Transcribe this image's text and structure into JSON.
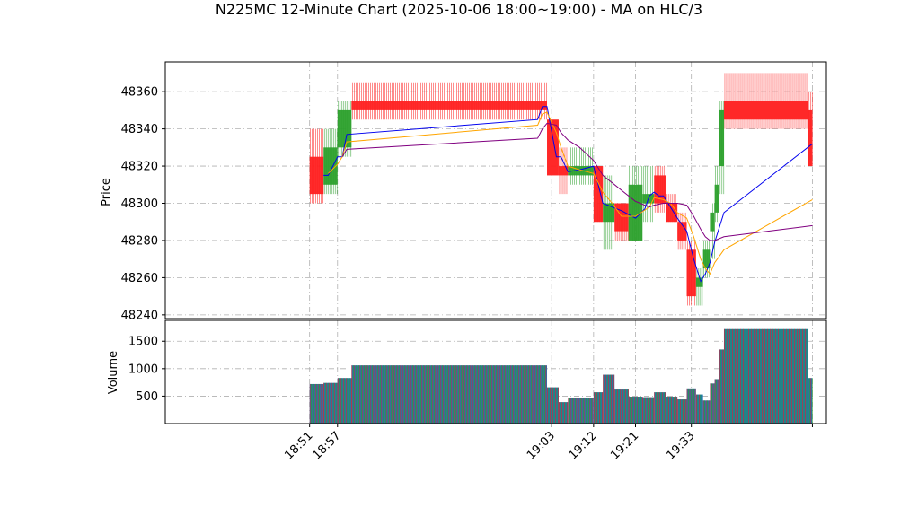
{
  "chart_data": {
    "type": "ohlc-candlestick-with-volume",
    "title": "N225MC 12-Minute Chart (2025-10-06 18:00~19:00) - MA on HLC/3",
    "price_panel": {
      "ylabel": "Price",
      "ylim": [
        48238,
        48376
      ],
      "yticks": [
        48240,
        48260,
        48280,
        48300,
        48320,
        48340,
        48360
      ],
      "grid": true
    },
    "volume_panel": {
      "ylabel": "Volume",
      "ylim": [
        0,
        1880
      ],
      "yticks": [
        500,
        1000,
        1500
      ],
      "grid": true
    },
    "xlim": [
      18.2,
      19.62
    ],
    "x_tick_labels": [
      {
        "x": 18.51,
        "label": "18:51"
      },
      {
        "x": 18.57,
        "label": "18:57"
      },
      {
        "x": 19.03,
        "label": "19:03"
      },
      {
        "x": 19.12,
        "label": "19:12"
      },
      {
        "x": 19.21,
        "label": "19:21"
      },
      {
        "x": 19.33,
        "label": "19:33"
      },
      {
        "x": 19.59,
        "label": ""
      }
    ],
    "candles": [
      {
        "x0": 18.51,
        "x1": 18.54,
        "open": 48325,
        "high": 48340,
        "low": 48300,
        "close": 48305,
        "volume": 720
      },
      {
        "x0": 18.54,
        "x1": 18.57,
        "open": 48310,
        "high": 48340,
        "low": 48305,
        "close": 48330,
        "volume": 740
      },
      {
        "x0": 18.57,
        "x1": 18.6,
        "open": 48330,
        "high": 48355,
        "low": 48325,
        "close": 48350,
        "volume": 830
      },
      {
        "x0": 18.6,
        "x1": 19.02,
        "open": 48355,
        "high": 48365,
        "low": 48345,
        "close": 48350,
        "volume": 1060
      },
      {
        "x0": 19.02,
        "x1": 19.045,
        "open": 48345,
        "high": 48345,
        "low": 48315,
        "close": 48315,
        "volume": 660
      },
      {
        "x0": 19.045,
        "x1": 19.065,
        "open": 48320,
        "high": 48330,
        "low": 48305,
        "close": 48315,
        "volume": 390
      },
      {
        "x0": 19.065,
        "x1": 19.12,
        "open": 48315,
        "high": 48330,
        "low": 48310,
        "close": 48320,
        "volume": 460
      },
      {
        "x0": 19.12,
        "x1": 19.14,
        "open": 48320,
        "high": 48320,
        "low": 48290,
        "close": 48290,
        "volume": 570
      },
      {
        "x0": 19.14,
        "x1": 19.165,
        "open": 48290,
        "high": 48315,
        "low": 48275,
        "close": 48300,
        "volume": 890
      },
      {
        "x0": 19.165,
        "x1": 19.195,
        "open": 48300,
        "high": 48300,
        "low": 48280,
        "close": 48285,
        "volume": 620
      },
      {
        "x0": 19.195,
        "x1": 19.225,
        "open": 48280,
        "high": 48320,
        "low": 48280,
        "close": 48310,
        "volume": 490
      },
      {
        "x0": 19.225,
        "x1": 19.25,
        "open": 48300,
        "high": 48320,
        "low": 48290,
        "close": 48305,
        "volume": 480
      },
      {
        "x0": 19.25,
        "x1": 19.275,
        "open": 48315,
        "high": 48320,
        "low": 48295,
        "close": 48300,
        "volume": 570
      },
      {
        "x0": 19.275,
        "x1": 19.3,
        "open": 48300,
        "high": 48305,
        "low": 48290,
        "close": 48290,
        "volume": 490
      },
      {
        "x0": 19.3,
        "x1": 19.32,
        "open": 48290,
        "high": 48295,
        "low": 48275,
        "close": 48280,
        "volume": 440
      },
      {
        "x0": 19.32,
        "x1": 19.34,
        "open": 48275,
        "high": 48280,
        "low": 48245,
        "close": 48250,
        "volume": 640
      },
      {
        "x0": 19.34,
        "x1": 19.355,
        "open": 48255,
        "high": 48265,
        "low": 48245,
        "close": 48260,
        "volume": 530
      },
      {
        "x0": 19.355,
        "x1": 19.37,
        "open": 48265,
        "high": 48280,
        "low": 48260,
        "close": 48275,
        "volume": 420
      },
      {
        "x0": 19.37,
        "x1": 19.38,
        "open": 48285,
        "high": 48300,
        "low": 48270,
        "close": 48295,
        "volume": 730
      },
      {
        "x0": 19.38,
        "x1": 19.39,
        "open": 48295,
        "high": 48320,
        "low": 48290,
        "close": 48310,
        "volume": 810
      },
      {
        "x0": 19.39,
        "x1": 19.4,
        "open": 48320,
        "high": 48355,
        "low": 48305,
        "close": 48350,
        "volume": 1350
      },
      {
        "x0": 19.4,
        "x1": 19.58,
        "open": 48355,
        "high": 48370,
        "low": 48340,
        "close": 48345,
        "volume": 1720
      },
      {
        "x0": 19.58,
        "x1": 19.59,
        "open": 48350,
        "high": 48360,
        "low": 48320,
        "close": 48320,
        "volume": 830
      }
    ],
    "ma_series": [
      {
        "color": "#0000ee",
        "points": [
          [
            18.54,
            48315
          ],
          [
            18.55,
            48315
          ],
          [
            18.57,
            48325
          ],
          [
            18.58,
            48325
          ],
          [
            18.59,
            48337
          ],
          [
            19.0,
            48345
          ],
          [
            19.01,
            48352
          ],
          [
            19.02,
            48352
          ],
          [
            19.04,
            48325
          ],
          [
            19.05,
            48325
          ],
          [
            19.065,
            48317
          ],
          [
            19.09,
            48318
          ],
          [
            19.12,
            48320
          ],
          [
            19.14,
            48300
          ],
          [
            19.16,
            48298
          ],
          [
            19.18,
            48296
          ],
          [
            19.21,
            48292
          ],
          [
            19.23,
            48297
          ],
          [
            19.24,
            48304
          ],
          [
            19.25,
            48306
          ],
          [
            19.26,
            48304
          ],
          [
            19.27,
            48304
          ],
          [
            19.285,
            48298
          ],
          [
            19.3,
            48292
          ],
          [
            19.32,
            48285
          ],
          [
            19.335,
            48270
          ],
          [
            19.35,
            48258
          ],
          [
            19.36,
            48262
          ],
          [
            19.37,
            48268
          ],
          [
            19.38,
            48279
          ],
          [
            19.4,
            48295
          ],
          [
            19.59,
            48332
          ]
        ]
      },
      {
        "color": "#ffa500",
        "points": [
          [
            18.55,
            48316
          ],
          [
            18.57,
            48321
          ],
          [
            18.58,
            48325
          ],
          [
            18.59,
            48333
          ],
          [
            19.0,
            48342
          ],
          [
            19.01,
            48348
          ],
          [
            19.02,
            48349
          ],
          [
            19.04,
            48338
          ],
          [
            19.05,
            48330
          ],
          [
            19.065,
            48320
          ],
          [
            19.09,
            48318
          ],
          [
            19.12,
            48316
          ],
          [
            19.14,
            48306
          ],
          [
            19.16,
            48300
          ],
          [
            19.18,
            48293
          ],
          [
            19.21,
            48293
          ],
          [
            19.24,
            48298
          ],
          [
            19.25,
            48303
          ],
          [
            19.27,
            48302
          ],
          [
            19.285,
            48300
          ],
          [
            19.3,
            48295
          ],
          [
            19.32,
            48292
          ],
          [
            19.335,
            48282
          ],
          [
            19.35,
            48270
          ],
          [
            19.36,
            48265
          ],
          [
            19.37,
            48262
          ],
          [
            19.38,
            48268
          ],
          [
            19.4,
            48275
          ],
          [
            19.59,
            48302
          ]
        ]
      },
      {
        "color": "#800080",
        "points": [
          [
            18.58,
            48325
          ],
          [
            18.59,
            48329
          ],
          [
            19.0,
            48335
          ],
          [
            19.01,
            48340
          ],
          [
            19.02,
            48343
          ],
          [
            19.04,
            48342
          ],
          [
            19.05,
            48338
          ],
          [
            19.065,
            48334
          ],
          [
            19.09,
            48330
          ],
          [
            19.12,
            48323
          ],
          [
            19.14,
            48315
          ],
          [
            19.16,
            48311
          ],
          [
            19.18,
            48307
          ],
          [
            19.21,
            48301
          ],
          [
            19.24,
            48298
          ],
          [
            19.25,
            48299
          ],
          [
            19.27,
            48300
          ],
          [
            19.285,
            48300
          ],
          [
            19.3,
            48300
          ],
          [
            19.32,
            48299
          ],
          [
            19.335,
            48293
          ],
          [
            19.35,
            48286
          ],
          [
            19.36,
            48282
          ],
          [
            19.37,
            48280
          ],
          [
            19.38,
            48280
          ],
          [
            19.4,
            48282
          ],
          [
            19.59,
            48288
          ]
        ]
      }
    ],
    "colors": {
      "up": "#2ca02c",
      "down": "#ff2020",
      "volume_face": "#1f77b4",
      "volume_stripe_up": "#2ca02c",
      "volume_stripe_down": "#d62728"
    }
  }
}
